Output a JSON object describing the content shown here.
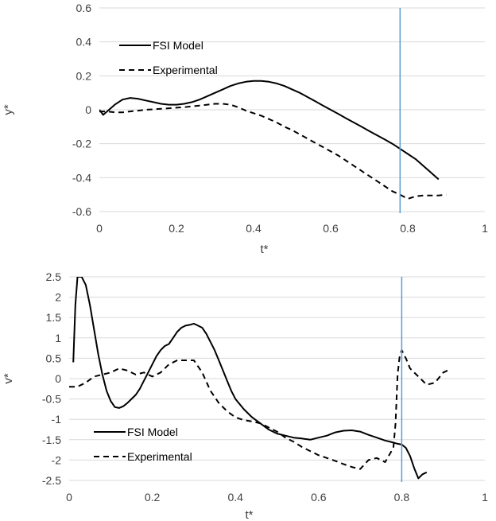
{
  "chart_data": [
    {
      "type": "line",
      "xlabel": "t*",
      "ylabel": "y*",
      "xlim": [
        0,
        1
      ],
      "ylim": [
        -0.6,
        0.6
      ],
      "xticks": [
        0,
        0.2,
        0.4,
        0.6,
        0.8,
        1
      ],
      "yticks": [
        -0.6,
        -0.4,
        -0.2,
        0,
        0.2,
        0.4,
        0.6
      ],
      "xtick_labels": [
        "0",
        "0.2",
        "0.4",
        "0.6",
        "0.8",
        "1"
      ],
      "ytick_labels": [
        "-0.6",
        "-0.4",
        "-0.2",
        "0",
        "0.2",
        "0.4",
        "0.6"
      ],
      "grid": "horizontal",
      "legend_position": "top-left",
      "vline": {
        "x": 0.78,
        "color": "#5b9bd5"
      },
      "series": [
        {
          "name": "FSI Model",
          "style": "solid",
          "x": [
            0,
            0.01,
            0.02,
            0.04,
            0.06,
            0.08,
            0.1,
            0.12,
            0.14,
            0.16,
            0.18,
            0.2,
            0.22,
            0.24,
            0.26,
            0.28,
            0.3,
            0.32,
            0.34,
            0.36,
            0.38,
            0.4,
            0.42,
            0.44,
            0.46,
            0.48,
            0.5,
            0.52,
            0.54,
            0.56,
            0.58,
            0.6,
            0.62,
            0.64,
            0.66,
            0.68,
            0.7,
            0.72,
            0.74,
            0.76,
            0.78,
            0.8,
            0.82,
            0.84,
            0.86,
            0.88
          ],
          "y": [
            0,
            -0.03,
            -0.01,
            0.03,
            0.06,
            0.07,
            0.065,
            0.055,
            0.045,
            0.035,
            0.03,
            0.03,
            0.035,
            0.045,
            0.06,
            0.08,
            0.1,
            0.12,
            0.14,
            0.155,
            0.165,
            0.17,
            0.17,
            0.165,
            0.155,
            0.14,
            0.12,
            0.1,
            0.075,
            0.05,
            0.025,
            0,
            -0.025,
            -0.05,
            -0.075,
            -0.1,
            -0.125,
            -0.15,
            -0.175,
            -0.2,
            -0.23,
            -0.26,
            -0.29,
            -0.33,
            -0.37,
            -0.41
          ]
        },
        {
          "name": "Experimental",
          "style": "dashed",
          "x": [
            0,
            0.02,
            0.04,
            0.06,
            0.08,
            0.1,
            0.12,
            0.14,
            0.16,
            0.18,
            0.2,
            0.22,
            0.24,
            0.26,
            0.28,
            0.3,
            0.32,
            0.34,
            0.36,
            0.38,
            0.4,
            0.42,
            0.44,
            0.46,
            0.48,
            0.5,
            0.52,
            0.54,
            0.56,
            0.58,
            0.6,
            0.62,
            0.64,
            0.66,
            0.68,
            0.7,
            0.72,
            0.74,
            0.76,
            0.78,
            0.8,
            0.82,
            0.84,
            0.86,
            0.88,
            0.9
          ],
          "y": [
            -0.01,
            -0.01,
            -0.015,
            -0.015,
            -0.01,
            -0.005,
            0,
            0.003,
            0.006,
            0.009,
            0.012,
            0.015,
            0.02,
            0.025,
            0.03,
            0.035,
            0.035,
            0.03,
            0.015,
            -0.005,
            -0.02,
            -0.035,
            -0.055,
            -0.075,
            -0.1,
            -0.12,
            -0.145,
            -0.17,
            -0.195,
            -0.22,
            -0.245,
            -0.27,
            -0.3,
            -0.33,
            -0.36,
            -0.39,
            -0.42,
            -0.45,
            -0.48,
            -0.5,
            -0.525,
            -0.51,
            -0.505,
            -0.505,
            -0.505,
            -0.5
          ]
        }
      ]
    },
    {
      "type": "line",
      "xlabel": "t*",
      "ylabel": "v*",
      "xlim": [
        0,
        1
      ],
      "ylim": [
        -2.5,
        2.5
      ],
      "xticks": [
        0,
        0.2,
        0.4,
        0.6,
        0.8,
        1
      ],
      "yticks": [
        -2.5,
        -2,
        -1.5,
        -1,
        -0.5,
        0,
        0.5,
        1,
        1.5,
        2,
        2.5
      ],
      "xtick_labels": [
        "0",
        "0.2",
        "0.4",
        "0.6",
        "0.8",
        "1"
      ],
      "ytick_labels": [
        "-2.5",
        "-2",
        "-1.5",
        "-1",
        "-0.5",
        "0",
        "0.5",
        "1",
        "1.5",
        "2",
        "2.5"
      ],
      "grid": "horizontal",
      "legend_position": "bottom-left",
      "vline": {
        "x": 0.8,
        "color": "#5b9bd5"
      },
      "series": [
        {
          "name": "FSI Model",
          "style": "solid",
          "x": [
            0.01,
            0.015,
            0.02,
            0.03,
            0.04,
            0.05,
            0.06,
            0.07,
            0.08,
            0.09,
            0.1,
            0.11,
            0.12,
            0.13,
            0.14,
            0.15,
            0.16,
            0.17,
            0.18,
            0.19,
            0.2,
            0.21,
            0.22,
            0.23,
            0.24,
            0.25,
            0.26,
            0.27,
            0.28,
            0.29,
            0.3,
            0.31,
            0.32,
            0.33,
            0.34,
            0.35,
            0.36,
            0.37,
            0.38,
            0.39,
            0.4,
            0.42,
            0.44,
            0.46,
            0.48,
            0.5,
            0.52,
            0.54,
            0.56,
            0.58,
            0.6,
            0.62,
            0.64,
            0.66,
            0.68,
            0.7,
            0.72,
            0.74,
            0.76,
            0.78,
            0.79,
            0.8,
            0.81,
            0.82,
            0.83,
            0.84,
            0.85,
            0.86
          ],
          "y": [
            0.4,
            1.8,
            2.5,
            2.5,
            2.3,
            1.8,
            1.2,
            0.6,
            0.1,
            -0.3,
            -0.55,
            -0.7,
            -0.72,
            -0.68,
            -0.6,
            -0.5,
            -0.4,
            -0.25,
            -0.05,
            0.15,
            0.35,
            0.55,
            0.7,
            0.8,
            0.85,
            1.0,
            1.15,
            1.25,
            1.3,
            1.32,
            1.35,
            1.3,
            1.25,
            1.1,
            0.9,
            0.7,
            0.45,
            0.2,
            -0.05,
            -0.3,
            -0.5,
            -0.75,
            -0.95,
            -1.1,
            -1.25,
            -1.35,
            -1.4,
            -1.45,
            -1.47,
            -1.5,
            -1.45,
            -1.4,
            -1.32,
            -1.28,
            -1.27,
            -1.3,
            -1.38,
            -1.45,
            -1.52,
            -1.57,
            -1.6,
            -1.62,
            -1.7,
            -1.9,
            -2.2,
            -2.45,
            -2.35,
            -2.3
          ]
        },
        {
          "name": "Experimental",
          "style": "dashed",
          "x": [
            0,
            0.02,
            0.04,
            0.06,
            0.08,
            0.1,
            0.12,
            0.14,
            0.16,
            0.18,
            0.2,
            0.22,
            0.24,
            0.26,
            0.28,
            0.3,
            0.32,
            0.34,
            0.36,
            0.38,
            0.4,
            0.42,
            0.44,
            0.46,
            0.48,
            0.5,
            0.52,
            0.54,
            0.56,
            0.58,
            0.6,
            0.62,
            0.64,
            0.66,
            0.68,
            0.7,
            0.72,
            0.74,
            0.76,
            0.78,
            0.785,
            0.79,
            0.795,
            0.8,
            0.81,
            0.82,
            0.84,
            0.86,
            0.88,
            0.9,
            0.91
          ],
          "y": [
            -0.2,
            -0.2,
            -0.1,
            0.05,
            0.1,
            0.15,
            0.25,
            0.2,
            0.1,
            0.15,
            0.05,
            0.15,
            0.35,
            0.45,
            0.45,
            0.45,
            0.15,
            -0.3,
            -0.6,
            -0.8,
            -0.95,
            -1.02,
            -1.05,
            -1.1,
            -1.2,
            -1.3,
            -1.45,
            -1.55,
            -1.68,
            -1.78,
            -1.88,
            -1.95,
            -2.02,
            -2.1,
            -2.17,
            -2.22,
            -2.0,
            -1.95,
            -2.05,
            -1.7,
            -1.1,
            0.1,
            0.55,
            0.7,
            0.5,
            0.25,
            0.05,
            -0.15,
            -0.1,
            0.15,
            0.2
          ]
        }
      ]
    }
  ]
}
